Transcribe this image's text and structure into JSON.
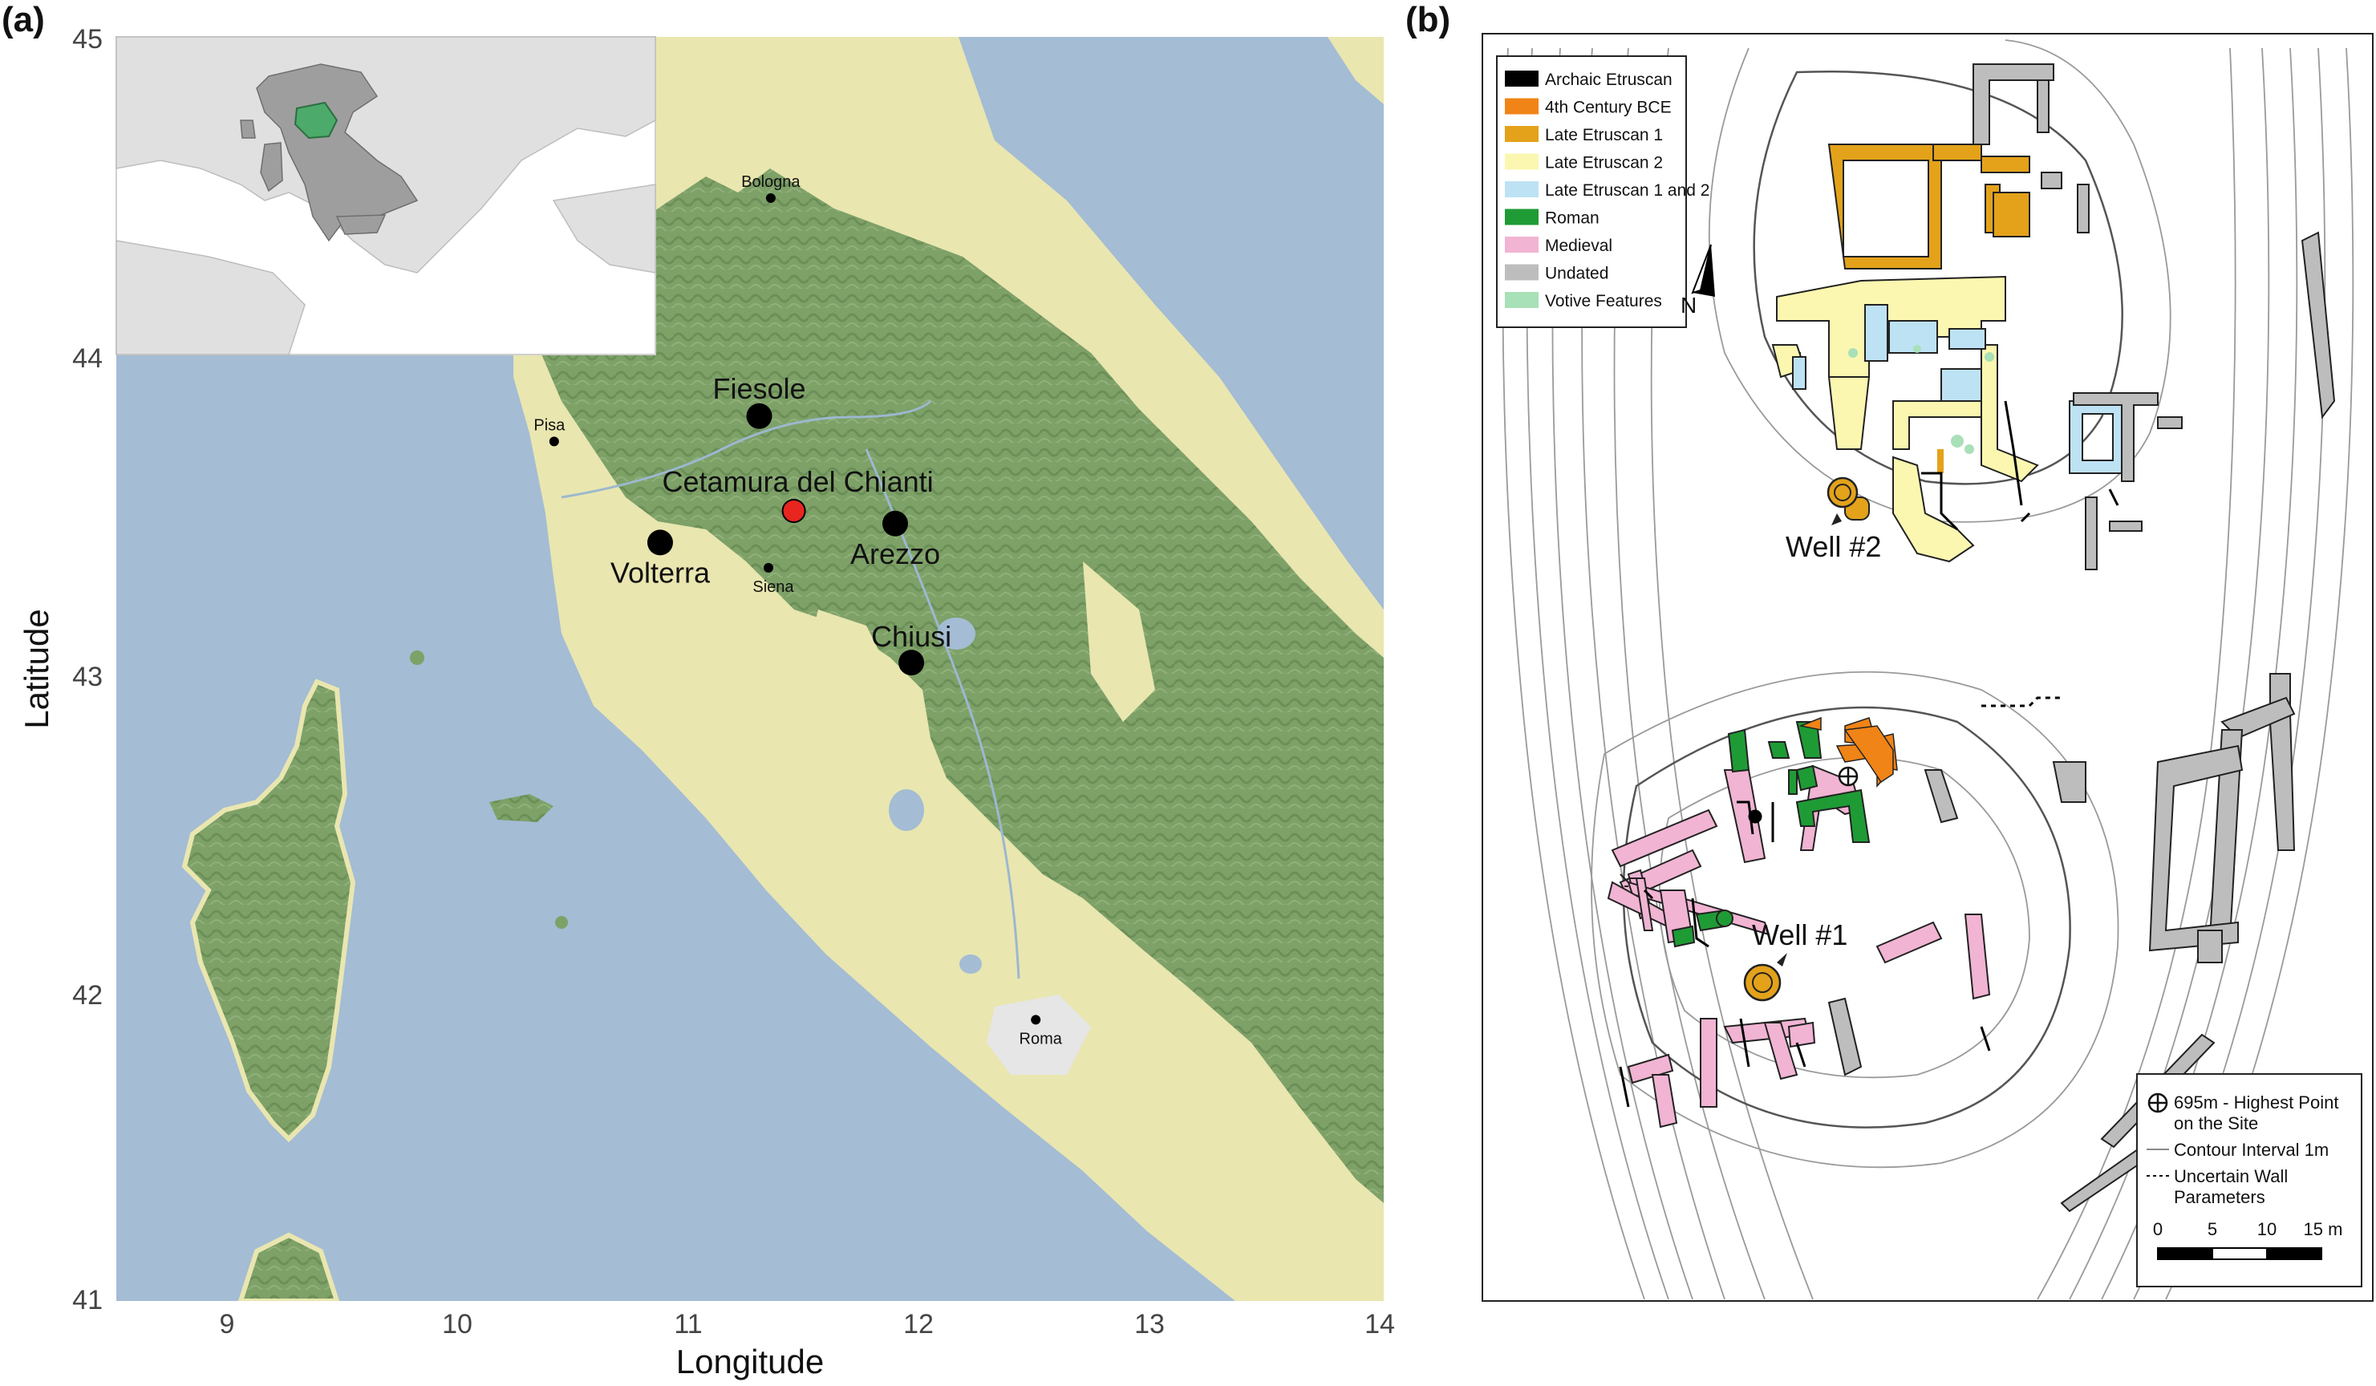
{
  "panel_a": {
    "label": "(a)",
    "x_axis": {
      "title": "Longitude",
      "ticks": [
        "9",
        "10",
        "11",
        "12",
        "13",
        "14"
      ]
    },
    "y_axis": {
      "title": "Latitude",
      "ticks": [
        "45",
        "44",
        "43",
        "42",
        "41"
      ]
    },
    "cities_major": [
      {
        "name": "Fiesole",
        "lon": 11.29,
        "lat": 43.8,
        "highlight": false
      },
      {
        "name": "Volterra",
        "lon": 10.86,
        "lat": 43.4,
        "highlight": false
      },
      {
        "name": "Arezzo",
        "lon": 11.88,
        "lat": 43.46,
        "highlight": false
      },
      {
        "name": "Chiusi",
        "lon": 11.95,
        "lat": 43.02,
        "highlight": false
      },
      {
        "name": "Cetamura del Chianti",
        "lon": 11.44,
        "lat": 43.5,
        "highlight": true
      }
    ],
    "cities_minor": [
      {
        "name": "Bologna",
        "lon": 11.34,
        "lat": 44.49
      },
      {
        "name": "Pisa",
        "lon": 10.4,
        "lat": 43.72
      },
      {
        "name": "Siena",
        "lon": 11.33,
        "lat": 43.32
      },
      {
        "name": "Roma",
        "lon": 12.49,
        "lat": 41.89
      }
    ],
    "colors": {
      "sea": "#a4bcd4",
      "lowland": "#e9e6b0",
      "forest": "#7ea168",
      "urban": "#e6e6e6",
      "highlight_dot": "#e8261f"
    }
  },
  "panel_b": {
    "label": "(b)",
    "north_label": "N",
    "legend": [
      {
        "label": "Archaic Etruscan",
        "color": "#000000"
      },
      {
        "label": "4th Century BCE",
        "color": "#f08416"
      },
      {
        "label": "Late Etruscan 1",
        "color": "#e3a21a"
      },
      {
        "label": "Late Etruscan 2",
        "color": "#fbf7b0"
      },
      {
        "label": "Late Etruscan 1 and 2",
        "color": "#bde2f4"
      },
      {
        "label": "Roman",
        "color": "#1f9b35"
      },
      {
        "label": "Medieval",
        "color": "#f1b4d3"
      },
      {
        "label": "Undated",
        "color": "#bdbdbd"
      },
      {
        "label": "Votive Features",
        "color": "#a8e0b8"
      }
    ],
    "wells": [
      "Well #2",
      "Well #1"
    ],
    "key": {
      "highest_point": [
        "695m - Highest Point",
        "on the Site"
      ],
      "contour": "Contour Interval 1m",
      "uncertain": [
        "Uncertain Wall",
        "Parameters"
      ],
      "scale_ticks": [
        "0",
        "5",
        "10",
        "15 m"
      ]
    }
  }
}
